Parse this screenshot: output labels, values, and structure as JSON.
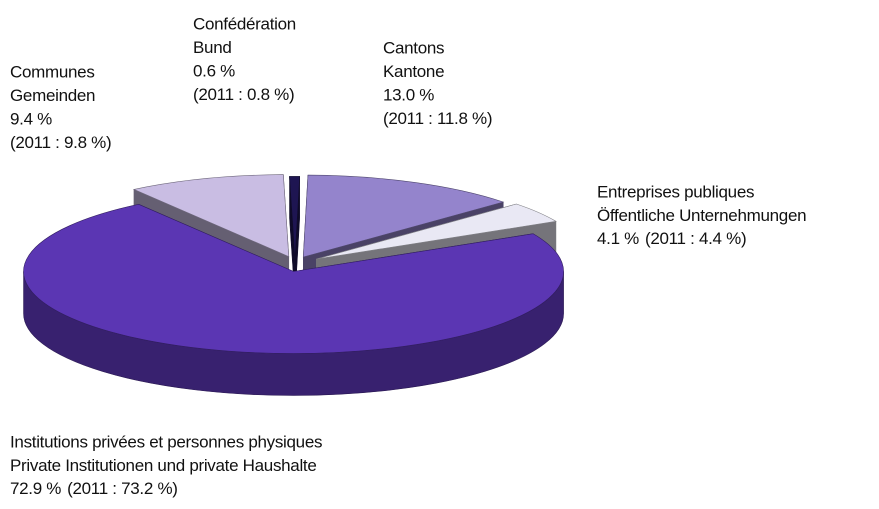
{
  "chart_data": {
    "type": "pie3d",
    "categories": [
      [
        "Communes",
        "Gemeinden"
      ],
      [
        "Confédération",
        "Bund"
      ],
      [
        "Cantons",
        "Kantone"
      ],
      [
        "Entreprises publiques",
        "Öffentliche Unternehmungen"
      ],
      [
        "Institutions privées et personnes physiques",
        "Private Institutionen und private Haushalte"
      ]
    ],
    "values": [
      9.4,
      0.6,
      13.0,
      4.1,
      72.9
    ],
    "value_labels": [
      "9.4 %",
      "0.6 %",
      "13.0 %",
      "4.1 %",
      "72.9 %"
    ],
    "previous_labels": [
      "(2011 : 9.8 %)",
      "(2011 : 0.8 %)",
      "(2011 : 11.8 %)",
      "(2011 : 4.4 %)",
      "(2011 : 73.2 %)"
    ],
    "colors": [
      "#c9bde3",
      "#1e1552",
      "#9484cc",
      "#e9e8f4",
      "#5b36b3"
    ]
  }
}
